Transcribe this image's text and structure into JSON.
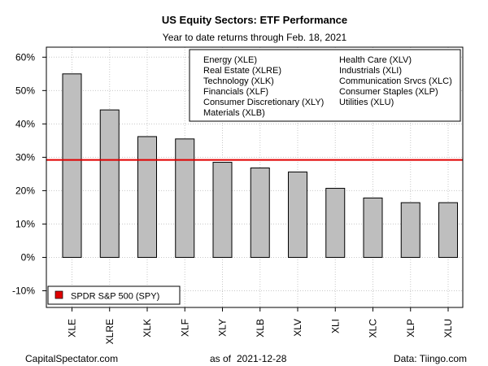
{
  "chart_data": {
    "type": "bar",
    "title": "US Equity Sectors: ETF Performance",
    "subtitle": "Year to date returns through Feb. 18, 2021",
    "categories": [
      "XLE",
      "XLRE",
      "XLK",
      "XLF",
      "XLY",
      "XLB",
      "XLV",
      "XLI",
      "XLC",
      "XLP",
      "XLU"
    ],
    "values": [
      55.0,
      44.2,
      36.2,
      35.5,
      28.5,
      26.8,
      25.6,
      20.7,
      17.8,
      16.4,
      16.4
    ],
    "ylim": [
      -15,
      63
    ],
    "yticks": [
      -10,
      0,
      10,
      20,
      30,
      40,
      50,
      60
    ],
    "ytick_labels": [
      "-10%",
      "0%",
      "10%",
      "20%",
      "30%",
      "40%",
      "50%",
      "60%"
    ],
    "grid": true,
    "bar_color": "#bebebe",
    "reference_line": {
      "label": "SPDR S&P 500 (SPY)",
      "value": 29.2,
      "color": "#e00000"
    },
    "legend": {
      "placement": "top-right",
      "col1": [
        "Energy (XLE)",
        "Real Estate (XLRE)",
        "Technology (XLK)",
        "Financials (XLF)",
        "Consumer Discretionary (XLY)",
        "Materials (XLB)"
      ],
      "col2": [
        "Health Care (XLV)",
        "Industrials (XLI)",
        "Communication Srvcs (XLC)",
        "Consumer Staples (XLP)",
        "Utilities (XLU)"
      ]
    },
    "spy_legend_placement": "bottom-left"
  },
  "footer": {
    "left": "CapitalSpectator.com",
    "center_label": "as of",
    "date": "2021-12-28",
    "right": "Data: Tiingo.com"
  }
}
